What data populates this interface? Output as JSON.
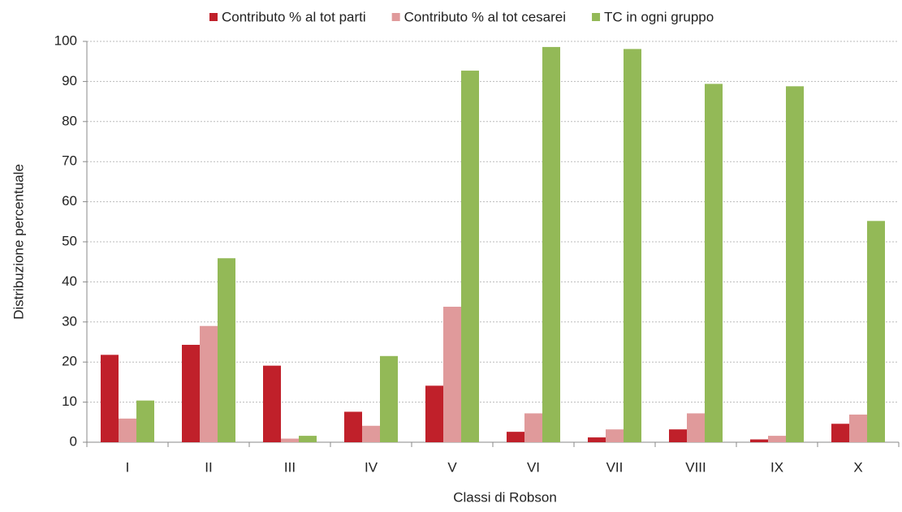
{
  "chart_data": {
    "type": "bar",
    "x_label": "Classi di Robson",
    "y_label": "Distribuzione percentuale",
    "categories": [
      "I",
      "II",
      "III",
      "IV",
      "V",
      "VI",
      "VII",
      "VIII",
      "IX",
      "X"
    ],
    "series": [
      {
        "name": "Contributo % al tot parti",
        "color": "#c0202a",
        "values": [
          21.8,
          24.3,
          19.1,
          7.6,
          14.1,
          2.6,
          1.2,
          3.2,
          0.7,
          4.6
        ]
      },
      {
        "name": "Contributo % al tot cesarei",
        "color": "#e09a9b",
        "values": [
          5.9,
          29.0,
          0.9,
          4.1,
          33.8,
          7.2,
          3.2,
          7.2,
          1.6,
          6.9
        ]
      },
      {
        "name": "TC in ogni gruppo",
        "color": "#93b957",
        "values": [
          10.4,
          45.9,
          1.6,
          21.5,
          92.7,
          98.6,
          98.1,
          89.4,
          88.8,
          55.2
        ]
      }
    ],
    "ylim": [
      0,
      100
    ],
    "yticks": [
      0,
      10,
      20,
      30,
      40,
      50,
      60,
      70,
      80,
      90,
      100
    ],
    "grid": true,
    "legend": "top"
  }
}
